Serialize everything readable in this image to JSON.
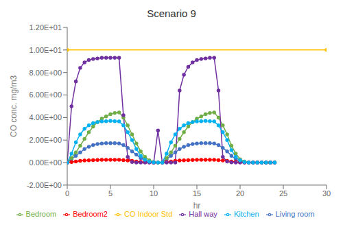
{
  "chart_data": {
    "type": "line",
    "title": "Scenario 9",
    "xlabel": "hr",
    "ylabel": "CO conc. mg/m3",
    "xlim": [
      0,
      30
    ],
    "xticks": [
      0,
      5,
      10,
      15,
      20,
      25,
      30
    ],
    "ylim": [
      -2.0,
      12.0
    ],
    "yticks": [
      {
        "value": -2.0,
        "label": "-2.00E+00"
      },
      {
        "value": 0.0,
        "label": "0.00E+00"
      },
      {
        "value": 2.0,
        "label": "2.00E+00"
      },
      {
        "value": 4.0,
        "label": "4.00E+00"
      },
      {
        "value": 6.0,
        "label": "6.00E+00"
      },
      {
        "value": 8.0,
        "label": "8.00E+00"
      },
      {
        "value": 10.0,
        "label": "1.00E+01"
      },
      {
        "value": 12.0,
        "label": "1.20E+01"
      }
    ],
    "grid": false,
    "series": [
      {
        "name": "Living room",
        "color": "#4472C4",
        "marker": "circle",
        "x": [
          0,
          0.5,
          1,
          1.5,
          2,
          2.5,
          3,
          3.5,
          4,
          4.5,
          5,
          5.5,
          6,
          6.5,
          7,
          7.5,
          8,
          8.5,
          9,
          9.5,
          10,
          10.5,
          11,
          11.5,
          12,
          12.5,
          13,
          13.5,
          14,
          14.5,
          15,
          15.5,
          16,
          16.5,
          17,
          17.5,
          18,
          18.5,
          19,
          19.5,
          20,
          20.5,
          21,
          21.5,
          22,
          22.5,
          23,
          23.5,
          24
        ],
        "values": [
          0.0,
          0.3,
          0.6,
          0.9,
          1.2,
          1.4,
          1.55,
          1.65,
          1.7,
          1.72,
          1.73,
          1.72,
          1.7,
          1.55,
          1.3,
          1.0,
          0.7,
          0.4,
          0.2,
          0.05,
          0.0,
          0.0,
          0.0,
          0.3,
          0.6,
          0.9,
          1.2,
          1.4,
          1.55,
          1.65,
          1.7,
          1.72,
          1.73,
          1.72,
          1.7,
          1.55,
          1.3,
          1.0,
          0.6,
          0.3,
          0.1,
          0.02,
          0.0,
          0.0,
          0.0,
          0.0,
          0.0,
          0.0,
          0.0
        ]
      },
      {
        "name": "Bedroom2",
        "color": "#FF0000",
        "marker": "circle",
        "x": [
          0,
          0.5,
          1,
          1.5,
          2,
          2.5,
          3,
          3.5,
          4,
          4.5,
          5,
          5.5,
          6,
          6.5,
          7,
          7.5,
          8,
          8.5,
          9,
          9.5,
          10,
          10.5,
          11,
          11.5,
          12,
          12.5,
          13,
          13.5,
          14,
          14.5,
          15,
          15.5,
          16,
          16.5,
          17,
          17.5,
          18,
          18.5,
          19,
          19.5,
          20,
          20.5,
          21,
          21.5,
          22,
          22.5,
          23,
          23.5,
          24
        ],
        "values": [
          0.0,
          0.05,
          0.1,
          0.15,
          0.18,
          0.2,
          0.22,
          0.23,
          0.24,
          0.245,
          0.25,
          0.245,
          0.24,
          0.22,
          0.19,
          0.15,
          0.1,
          0.07,
          0.04,
          0.02,
          0.01,
          0.0,
          0.0,
          0.05,
          0.1,
          0.15,
          0.18,
          0.2,
          0.22,
          0.23,
          0.24,
          0.245,
          0.25,
          0.245,
          0.24,
          0.22,
          0.19,
          0.15,
          0.1,
          0.07,
          0.04,
          0.02,
          0.01,
          0.0,
          0.0,
          0.0,
          0.0,
          0.0,
          0.0
        ]
      },
      {
        "name": "Bedroom",
        "color": "#70AD47",
        "marker": "circle",
        "x": [
          0,
          0.5,
          1,
          1.5,
          2,
          2.5,
          3,
          3.5,
          4,
          4.5,
          5,
          5.5,
          6,
          6.5,
          7,
          7.5,
          8,
          8.5,
          9,
          9.5,
          10,
          10.5,
          11,
          11.5,
          12,
          12.5,
          13,
          13.5,
          14,
          14.5,
          15,
          15.5,
          16,
          16.5,
          17,
          17.5,
          18,
          18.5,
          19,
          19.5,
          20,
          20.5,
          21,
          21.5,
          22,
          22.5,
          23,
          23.5,
          24
        ],
        "values": [
          0.0,
          0.4,
          0.9,
          1.5,
          2.1,
          2.7,
          3.2,
          3.6,
          3.9,
          4.1,
          4.3,
          4.4,
          4.45,
          4.0,
          3.3,
          2.5,
          1.7,
          1.0,
          0.5,
          0.2,
          0.05,
          0.0,
          0.0,
          0.4,
          0.9,
          1.5,
          2.1,
          2.7,
          3.2,
          3.6,
          3.9,
          4.1,
          4.3,
          4.4,
          4.45,
          4.0,
          3.3,
          2.5,
          1.5,
          0.8,
          0.3,
          0.1,
          0.02,
          0.0,
          0.0,
          0.0,
          0.0,
          0.0,
          0.0
        ]
      },
      {
        "name": "Hall way",
        "color": "#7030A0",
        "marker": "circle",
        "x": [
          0,
          0.5,
          1,
          1.5,
          2,
          2.5,
          3,
          3.5,
          4,
          4.5,
          5,
          5.5,
          6,
          6.5,
          7,
          7.5,
          8,
          8.5,
          9,
          9.5,
          10,
          10.5,
          11,
          11.5,
          12,
          12.5,
          13,
          13.5,
          14,
          14.5,
          15,
          15.5,
          16,
          16.5,
          17,
          17.5,
          18,
          18.5,
          19,
          19.5,
          20,
          20.5,
          21,
          21.5,
          22,
          22.5,
          23,
          23.5,
          24
        ],
        "values": [
          0.0,
          5.0,
          7.2,
          8.4,
          8.9,
          9.1,
          9.2,
          9.25,
          9.3,
          9.3,
          9.3,
          9.3,
          9.3,
          4.2,
          0.5,
          0.05,
          0.0,
          0.0,
          0.0,
          0.0,
          0.0,
          2.85,
          0.0,
          0.0,
          0.0,
          0.0,
          6.4,
          7.8,
          8.5,
          8.9,
          9.1,
          9.2,
          9.25,
          9.3,
          9.3,
          6.4,
          0.5,
          0.1,
          0.02,
          0.0,
          0.0,
          0.0,
          0.0,
          0.0,
          0.0,
          0.0,
          0.0,
          0.0,
          0.0
        ]
      },
      {
        "name": "Kitchen",
        "color": "#00B0F0",
        "marker": "circle",
        "x": [
          0,
          0.5,
          1,
          1.5,
          2,
          2.5,
          3,
          3.5,
          4,
          4.5,
          5,
          5.5,
          6,
          6.5,
          7,
          7.5,
          8,
          8.5,
          9,
          9.5,
          10,
          10.5,
          11,
          11.5,
          12,
          12.5,
          13,
          13.5,
          14,
          14.5,
          15,
          15.5,
          16,
          16.5,
          17,
          17.5,
          18,
          18.5,
          19,
          19.5,
          20,
          20.5,
          21,
          21.5,
          22,
          22.5,
          23,
          23.5,
          24
        ],
        "values": [
          0.0,
          0.8,
          1.8,
          2.5,
          3.0,
          3.3,
          3.5,
          3.6,
          3.65,
          3.68,
          3.7,
          3.68,
          3.65,
          3.3,
          2.7,
          2.0,
          1.2,
          0.6,
          0.25,
          0.08,
          0.02,
          0.0,
          0.0,
          0.8,
          1.8,
          2.5,
          3.0,
          3.3,
          3.5,
          3.6,
          3.65,
          3.68,
          3.7,
          3.68,
          3.65,
          3.3,
          2.7,
          2.0,
          1.1,
          0.5,
          0.2,
          0.05,
          0.01,
          0.0,
          0.0,
          0.0,
          0.0,
          0.0,
          0.0
        ]
      },
      {
        "name": "CO Indoor Std",
        "color": "#FFC000",
        "marker": "circle",
        "x": [
          0,
          30
        ],
        "values": [
          10.0,
          10.0
        ]
      }
    ]
  }
}
